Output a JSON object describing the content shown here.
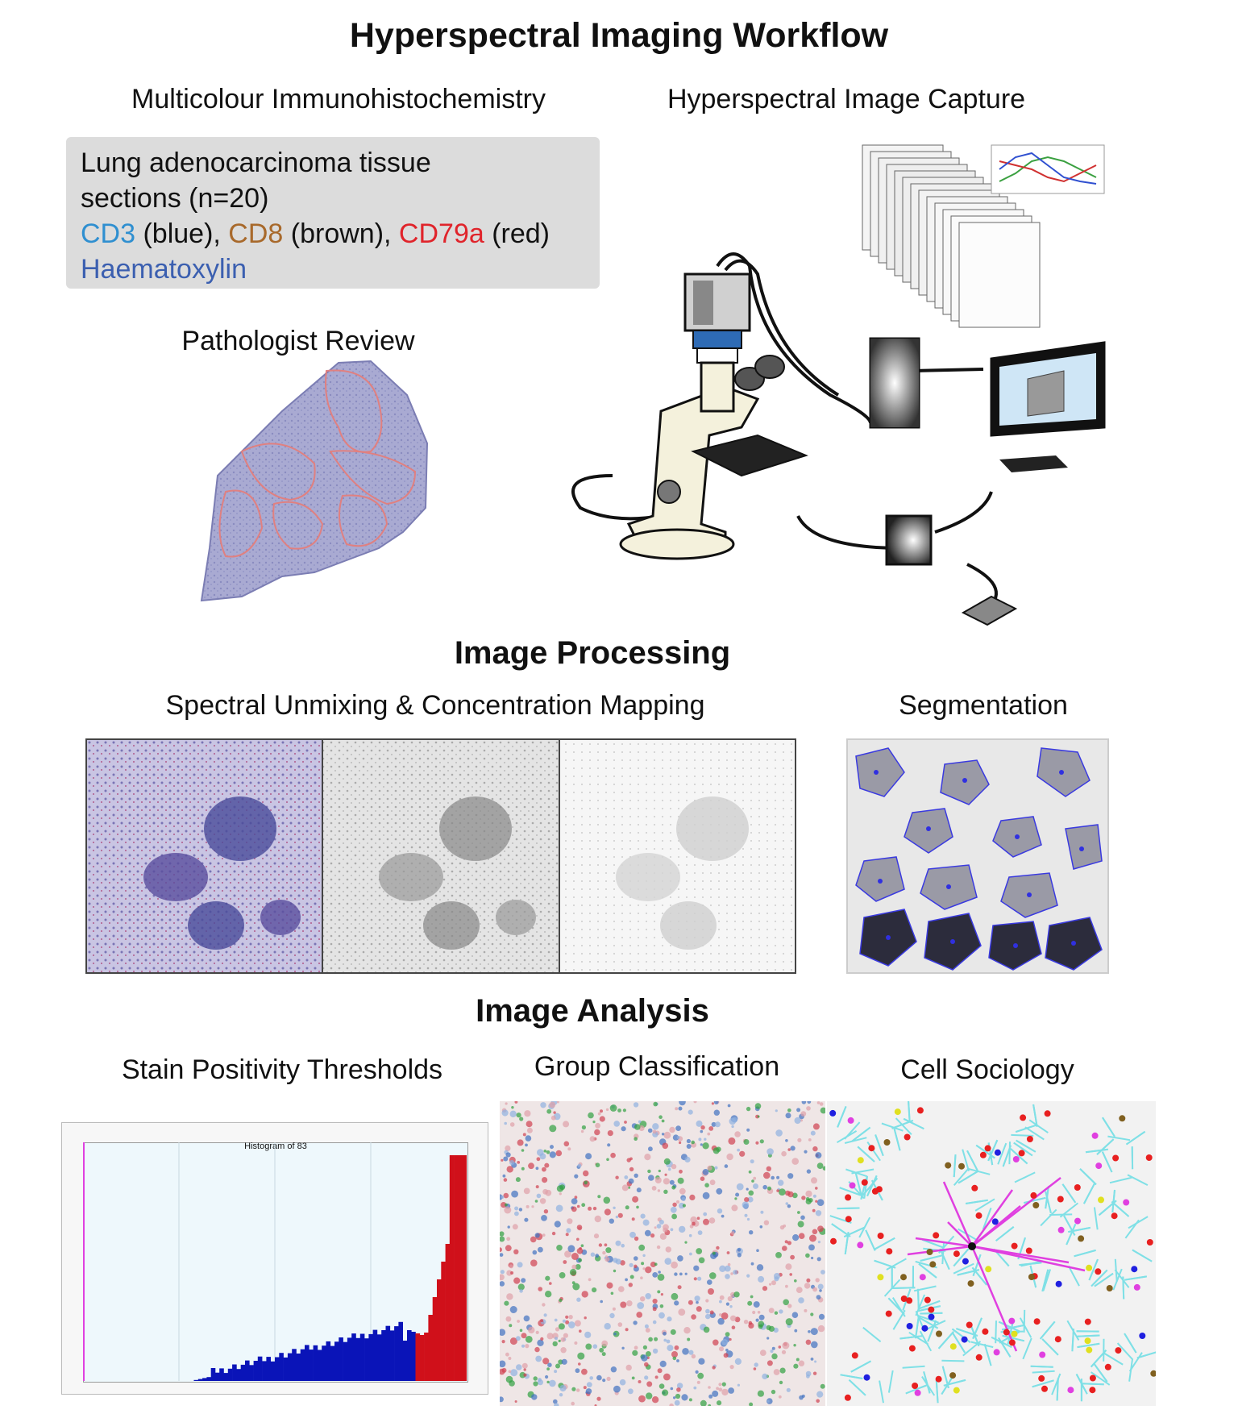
{
  "title": "Hyperspectral Imaging Workflow",
  "section1": {
    "left_heading": "Multicolour Immunohistochemistry",
    "right_heading": "Hyperspectral Image Capture",
    "info": {
      "line1": "Lung adenocarcinoma tissue",
      "line2": "sections (n=20)",
      "cd3": "CD3",
      "cd3_suffix": " (blue), ",
      "cd8": "CD8",
      "cd8_suffix": " (brown), ",
      "cd79a": "CD79a",
      "cd79a_suffix": " (red)",
      "haem": "Haematoxylin"
    },
    "pathologist_heading": "Pathologist Review"
  },
  "section2": {
    "heading": "Image Processing",
    "unmixing_heading": "Spectral Unmixing & Concentration Mapping",
    "segmentation_heading": "Segmentation"
  },
  "section3": {
    "heading": "Image Analysis",
    "threshold_heading": "Stain Positivity Thresholds",
    "group_heading": "Group Classification",
    "sociology_heading": "Cell Sociology",
    "histogram_title": "Histogram of 83"
  },
  "colors": {
    "cd3": "#2f8fd0",
    "cd8": "#a8692b",
    "cd79a": "#e0242b",
    "haem": "#3b5fb0",
    "histogram_blue": "#0a14b8",
    "histogram_red": "#d0101a",
    "voronoi": "#7fe0e6",
    "magenta": "#e040e0"
  }
}
